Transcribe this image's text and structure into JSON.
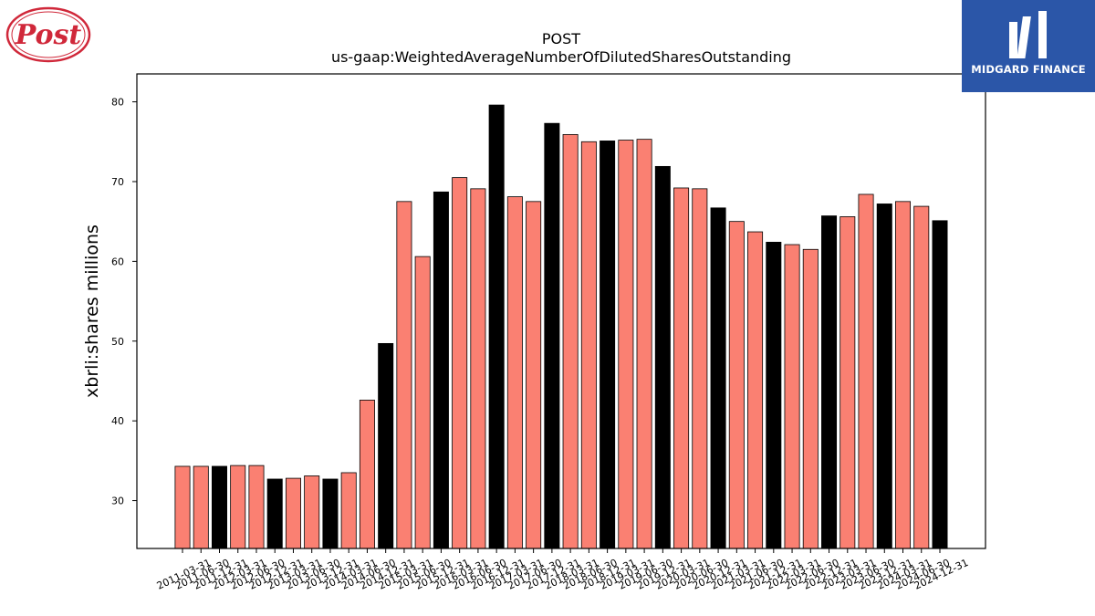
{
  "logos": {
    "company_text": "Post",
    "company_color": "#d0283a",
    "brand_text": "MIDGARD FINANCE",
    "brand_bg": "#2b56a8"
  },
  "colors": {
    "bar_primary": "#fa8072",
    "bar_alt": "#000000",
    "edge": "#000000"
  },
  "chart_data": {
    "type": "bar",
    "title": "POST",
    "subtitle": "us-gaap:WeightedAverageNumberOfDilutedSharesOutstanding",
    "xlabel": "",
    "ylabel": "xbrli:shares millions",
    "ylim": [
      24,
      83.5
    ],
    "yticks": [
      30,
      40,
      50,
      60,
      70,
      80
    ],
    "grid": false,
    "categories": [
      "2011-03-31",
      "2011-06-30",
      "2011-12-31",
      "2012-03-31",
      "2012-06-30",
      "2012-12-31",
      "2013-03-31",
      "2013-06-30",
      "2013-12-31",
      "2014-03-31",
      "2014-06-30",
      "2014-12-31",
      "2015-03-31",
      "2015-06-30",
      "2015-12-31",
      "2016-03-31",
      "2016-06-30",
      "2016-12-31",
      "2017-03-31",
      "2017-06-30",
      "2017-12-31",
      "2018-03-31",
      "2018-06-30",
      "2018-12-31",
      "2019-03-31",
      "2019-06-30",
      "2019-12-31",
      "2020-03-31",
      "2020-06-30",
      "2020-12-31",
      "2021-03-31",
      "2021-06-30",
      "2021-12-31",
      "2022-03-31",
      "2022-06-30",
      "2022-12-31",
      "2023-03-31",
      "2023-06-30",
      "2023-12-31",
      "2024-03-31",
      "2024-06-30",
      "2024-12-31"
    ],
    "values": [
      34.3,
      34.3,
      34.3,
      34.4,
      34.4,
      32.7,
      32.8,
      33.1,
      32.7,
      33.5,
      42.6,
      49.7,
      67.5,
      60.6,
      68.7,
      70.5,
      69.1,
      79.6,
      68.1,
      67.5,
      77.3,
      75.9,
      75.0,
      75.1,
      75.2,
      75.3,
      71.9,
      69.2,
      69.1,
      66.7,
      65.0,
      63.7,
      62.4,
      62.1,
      61.5,
      65.7,
      65.6,
      68.4,
      67.2,
      67.5,
      66.9,
      65.1
    ],
    "highlight": [
      false,
      false,
      true,
      false,
      false,
      true,
      false,
      false,
      true,
      false,
      false,
      true,
      false,
      false,
      true,
      false,
      false,
      true,
      false,
      false,
      true,
      false,
      false,
      true,
      false,
      false,
      true,
      false,
      false,
      true,
      false,
      false,
      true,
      false,
      false,
      true,
      false,
      false,
      true,
      false,
      false,
      true
    ]
  }
}
